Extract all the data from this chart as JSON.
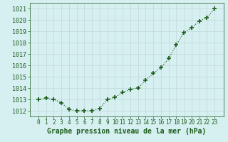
{
  "x": [
    0,
    1,
    2,
    3,
    4,
    5,
    6,
    7,
    8,
    9,
    10,
    11,
    12,
    13,
    14,
    15,
    16,
    17,
    18,
    19,
    20,
    21,
    22,
    23
  ],
  "y": [
    1013.0,
    1013.1,
    1013.0,
    1012.7,
    1012.1,
    1012.0,
    1012.0,
    1012.0,
    1012.2,
    1013.0,
    1013.2,
    1013.6,
    1013.9,
    1014.0,
    1014.7,
    1015.3,
    1015.8,
    1016.6,
    1017.8,
    1018.9,
    1019.3,
    1019.9,
    1020.2,
    1021.0
  ],
  "line_color": "#1a5c1a",
  "marker": "+",
  "marker_size": 4,
  "marker_lw": 1.2,
  "bg_color": "#d6eff0",
  "grid_color": "#c0d8d8",
  "xlabel": "Graphe pression niveau de la mer (hPa)",
  "xlabel_color": "#1a5c1a",
  "xlabel_fontsize": 7,
  "tick_color": "#1a5c1a",
  "ytick_fontsize": 6,
  "xtick_fontsize": 5.5,
  "ylim": [
    1011.5,
    1021.5
  ],
  "yticks": [
    1012,
    1013,
    1014,
    1015,
    1016,
    1017,
    1018,
    1019,
    1020,
    1021
  ],
  "xticks": [
    0,
    1,
    2,
    3,
    4,
    5,
    6,
    7,
    8,
    9,
    10,
    11,
    12,
    13,
    14,
    15,
    16,
    17,
    18,
    19,
    20,
    21,
    22,
    23
  ]
}
